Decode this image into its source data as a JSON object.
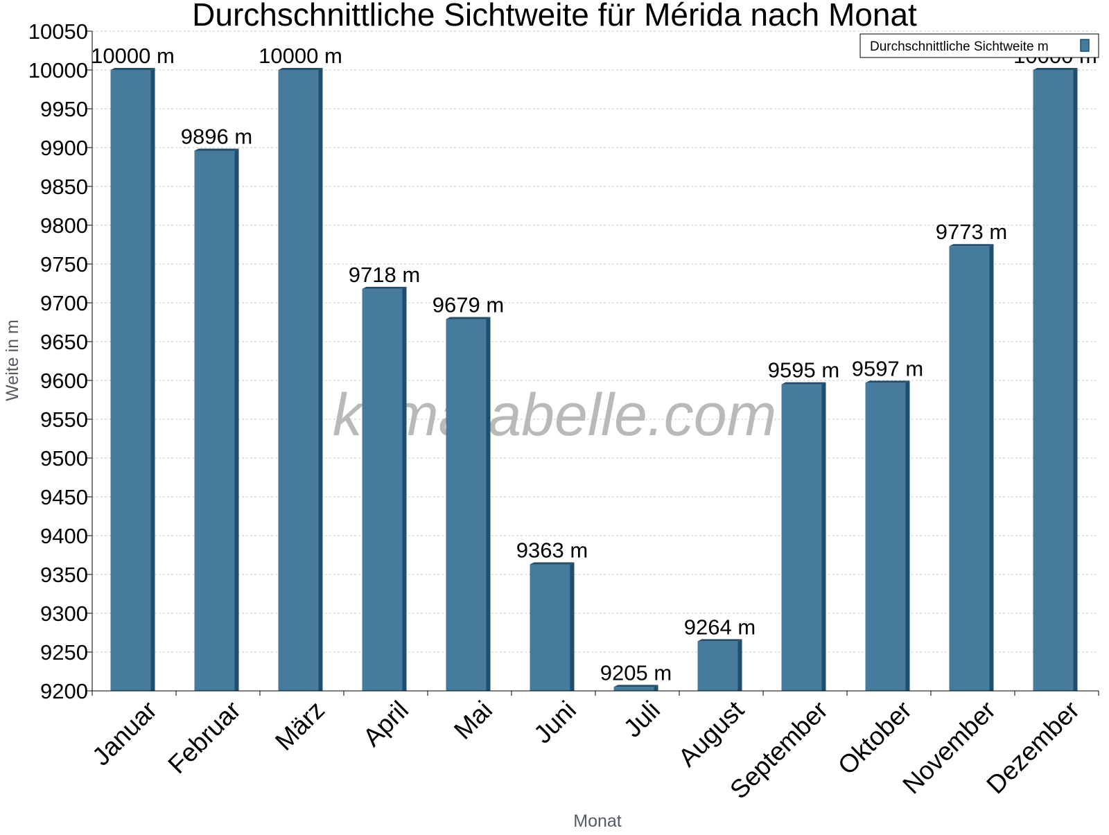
{
  "chart_data": {
    "type": "bar",
    "title": "Durchschnittliche Sichtweite für Mérida nach Monat",
    "xlabel": "Monat",
    "ylabel": "Weite in m",
    "ylim": [
      9200,
      10050
    ],
    "ytick_step": 50,
    "grid": true,
    "legend_position": "top-right",
    "watermark": "klimatabelle.com",
    "categories": [
      "Januar",
      "Februar",
      "März",
      "April",
      "Mai",
      "Juni",
      "Juli",
      "August",
      "September",
      "Oktober",
      "November",
      "Dezember"
    ],
    "series": [
      {
        "name": "Durchschnittliche Sichtweite m",
        "values": [
          10000,
          9896,
          10000,
          9718,
          9679,
          9363,
          9205,
          9264,
          9595,
          9597,
          9773,
          10000
        ],
        "labels": [
          "10000 m",
          "9896 m",
          "10000 m",
          "9718 m",
          "9679 m",
          "9363 m",
          "9205 m",
          "9264 m",
          "9595 m",
          "9597 m",
          "9773 m",
          "10000 m"
        ]
      }
    ],
    "colors": {
      "bar": "#467b9e",
      "bar_dark": "#1f4e6f",
      "grid": "#c8c8c8"
    }
  }
}
